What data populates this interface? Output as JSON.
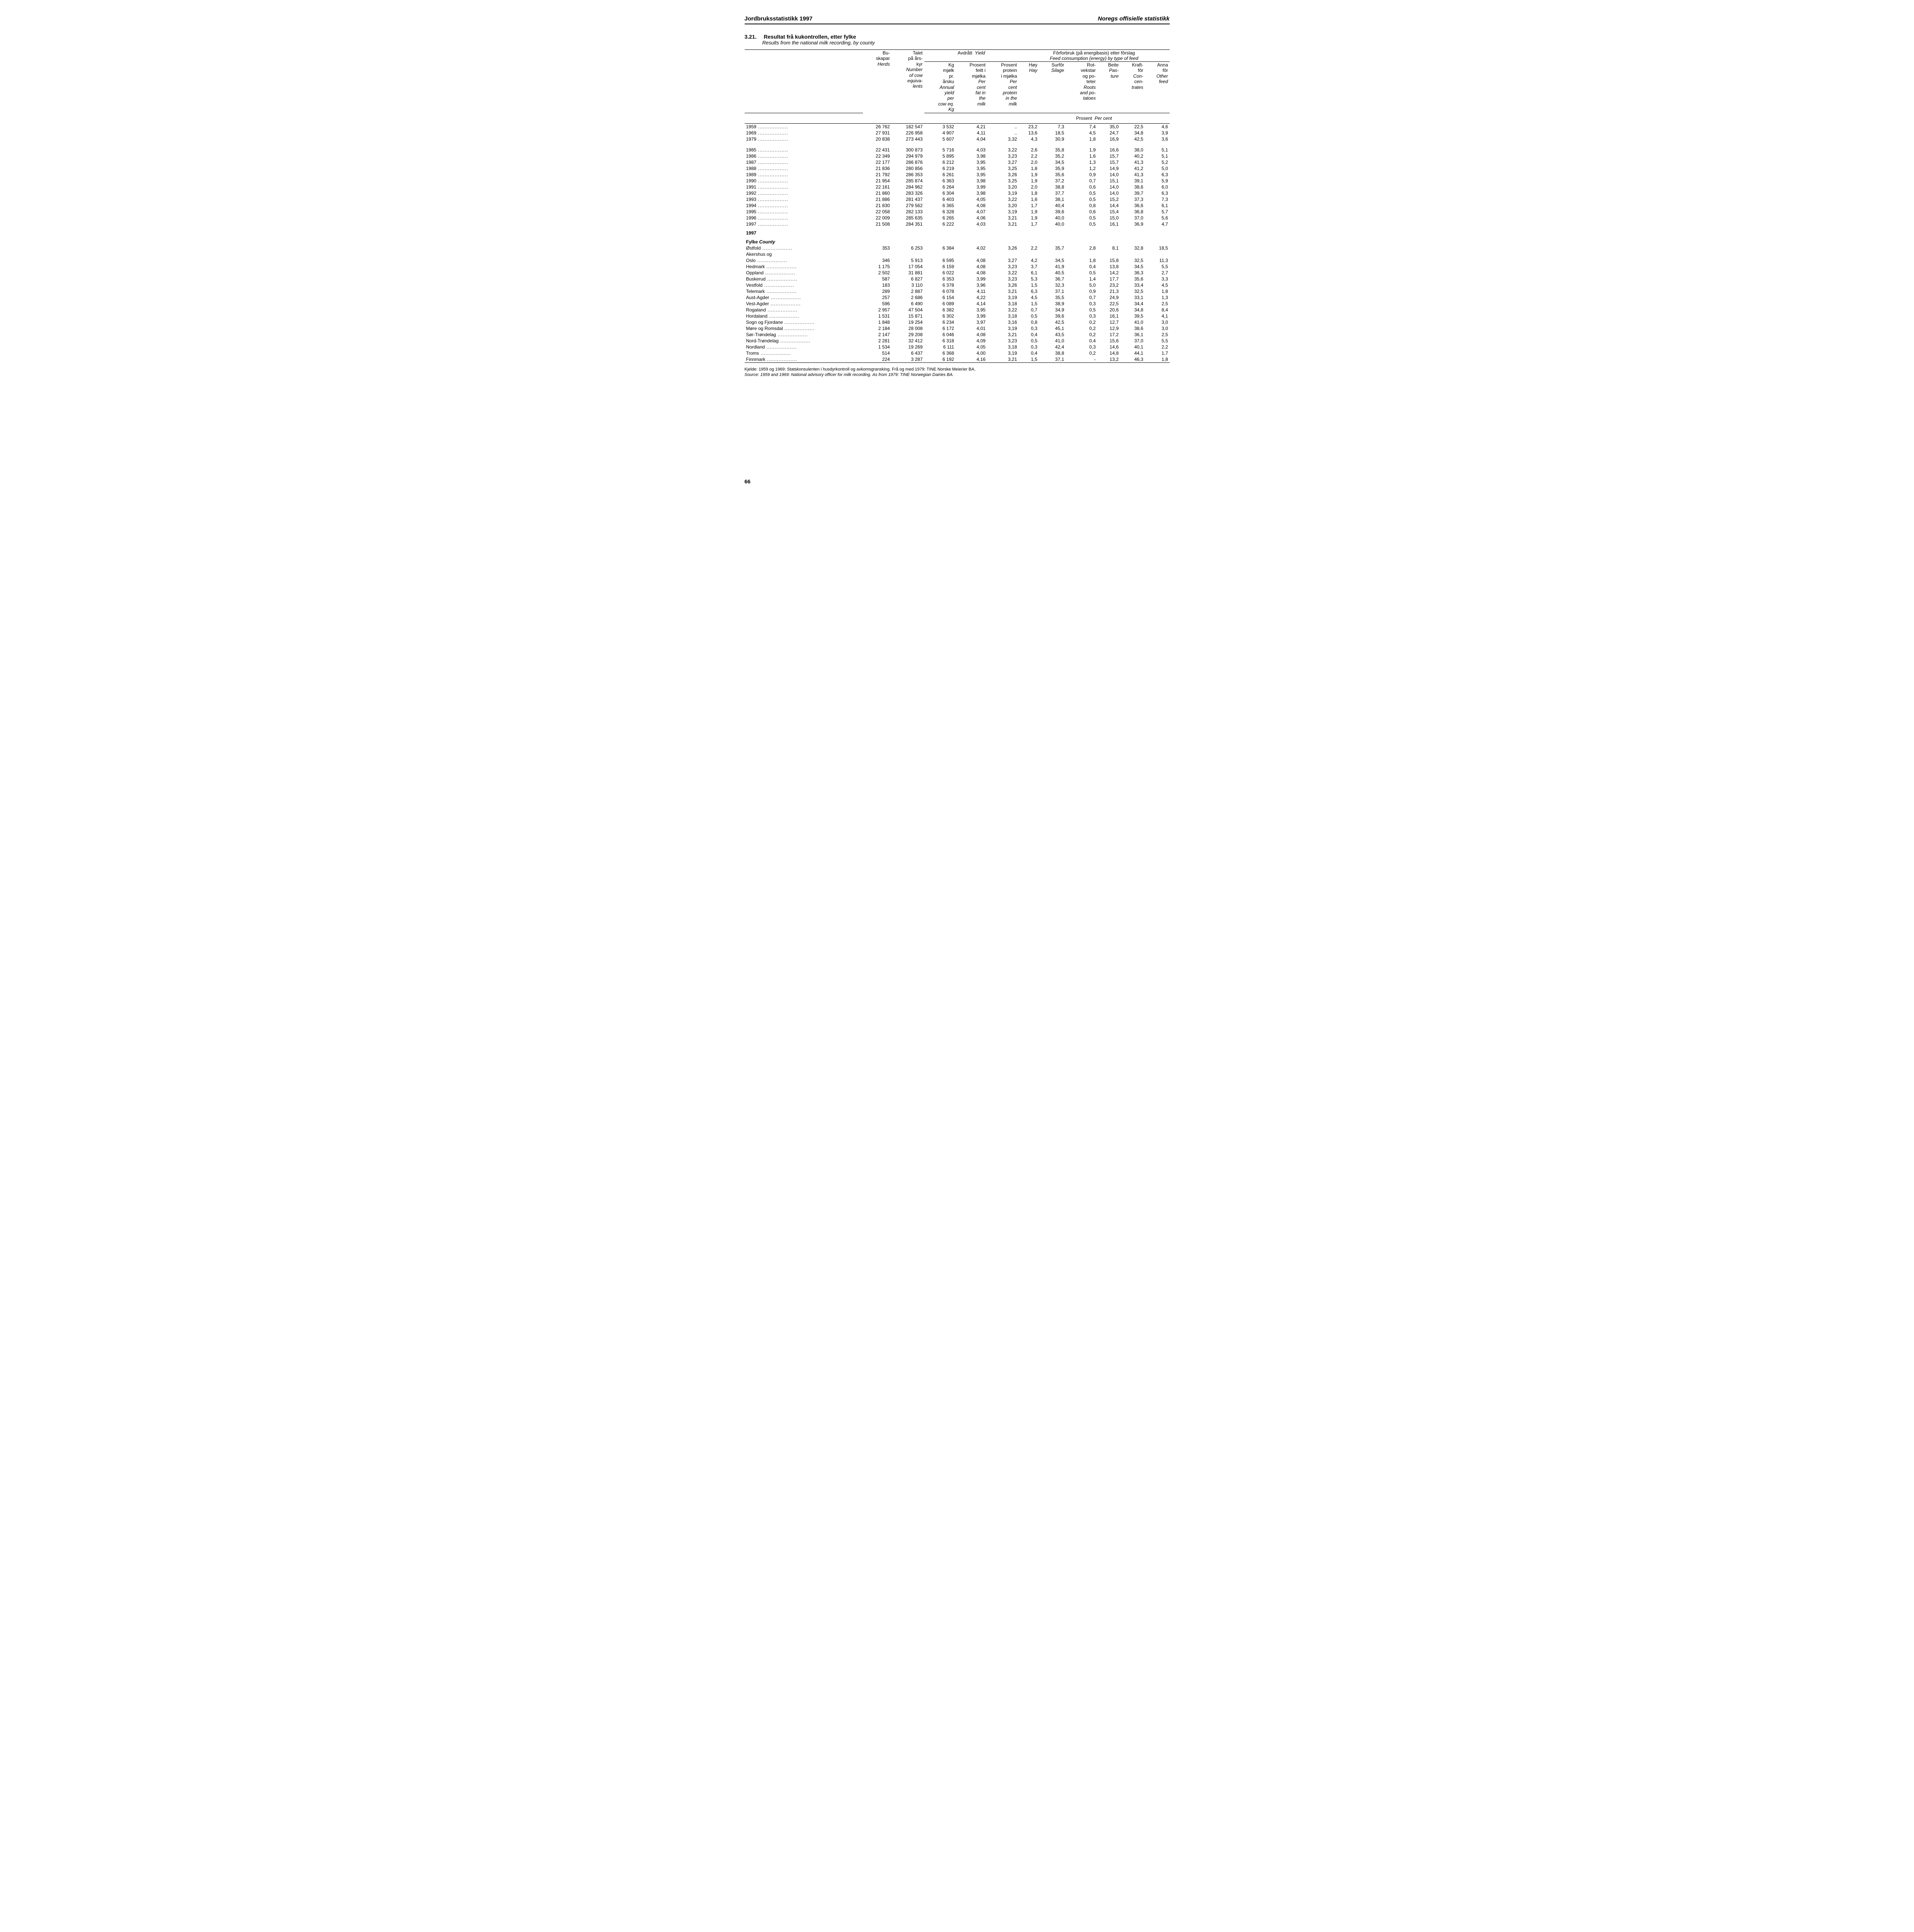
{
  "header": {
    "left": "Jordbruksstatistikk 1997",
    "right": "Noregs offisielle statistikk"
  },
  "title": {
    "num": "3.21.",
    "text": "Resultat frå kukontrollen, etter fylke",
    "sub": "Results from the national milk recording, by county"
  },
  "columns": {
    "group_avdratt": "Avdrått",
    "group_avdratt_en": "Yield",
    "group_for": "Fôrforbruk (på energibasis) etter fôrslag",
    "group_for_en": "Feed consumption (energy) by type of feed",
    "c1_no": "Bu-\nskapar",
    "c1_en": "Herds",
    "c2_no": "Talet\npå års-\nkyr",
    "c2_en": "Number\nof cow\nequiva-\nlents",
    "c3_no": "Kg\nmjølk\npr.\nårsku",
    "c3_en": "Annual\nyield\nper\ncow eq.\nKg",
    "c4_no": "Prosent\nfeitt i\nmjølka",
    "c4_en": "Per\ncent\nfat in\nthe\nmilk",
    "c5_no": "Prosent\nprotein\ni mjølka",
    "c5_en": "Per\ncent\nprotein\nin the\nmilk",
    "c6_no": "Høy",
    "c6_en": "Hay",
    "c7_no": "Surfôr",
    "c7_en": "Silage",
    "c8_no": "Rot-\nvekstar\nog po-\nteter",
    "c8_en": "Roots\nand po-\ntatoes",
    "c9_no": "Beite",
    "c9_en": "Pas-\nture",
    "c10_no": "Kraft-\nfôr",
    "c10_en": "Con-\ncen-\ntrates",
    "c11_no": "Anna\nfôr",
    "c11_en": "Other\nfeed",
    "percent": "Prosent",
    "percent_en": "Per cent"
  },
  "years": [
    {
      "label": "1959",
      "v": [
        "26 762",
        "182 547",
        "3 532",
        "4,21",
        "..",
        "23,2",
        "7,3",
        "7,4",
        "35,0",
        "22,5",
        "4,6"
      ]
    },
    {
      "label": "1969",
      "v": [
        "27 931",
        "226 958",
        "4 907",
        "4,11",
        "..",
        "13,6",
        "18,5",
        "4,5",
        "24,7",
        "34,8",
        "3,9"
      ]
    },
    {
      "label": "1979",
      "v": [
        "20 838",
        "273 443",
        "5 607",
        "4,04",
        "3,32",
        "4,3",
        "30,9",
        "1,8",
        "16,9",
        "42,5",
        "3,6"
      ]
    },
    {
      "label": "1985",
      "v": [
        "22 431",
        "300 873",
        "5 716",
        "4,03",
        "3,22",
        "2,6",
        "35,8",
        "1,9",
        "16,6",
        "38,0",
        "5,1"
      ]
    },
    {
      "label": "1986",
      "v": [
        "22 349",
        "294 979",
        "5 895",
        "3,98",
        "3,23",
        "2,2",
        "35,2",
        "1,6",
        "15,7",
        "40,2",
        "5,1"
      ]
    },
    {
      "label": "1987",
      "v": [
        "22 177",
        "286 876",
        "6 212",
        "3,95",
        "3,27",
        "2,0",
        "34,5",
        "1,3",
        "15,7",
        "41,3",
        "5,2"
      ]
    },
    {
      "label": "1988",
      "v": [
        "21 836",
        "280 856",
        "6 219",
        "3,95",
        "3,25",
        "1,8",
        "35,9",
        "1,2",
        "14,9",
        "41,2",
        "5,0"
      ]
    },
    {
      "label": "1989",
      "v": [
        "21 792",
        "286 353",
        "6 261",
        "3,95",
        "3,26",
        "1,9",
        "35,6",
        "0,9",
        "14,0",
        "41,3",
        "6,3"
      ]
    },
    {
      "label": "1990",
      "v": [
        "21 954",
        "285 874",
        "6 363",
        "3,98",
        "3,25",
        "1,9",
        "37,2",
        "0,7",
        "15,1",
        "39,1",
        "5,9"
      ]
    },
    {
      "label": "1991",
      "v": [
        "22 161",
        "284 962",
        "6 264",
        "3,99",
        "3,20",
        "2,0",
        "38,8",
        "0,6",
        "14,0",
        "38,6",
        "6,0"
      ]
    },
    {
      "label": "1992",
      "v": [
        "21 860",
        "283 326",
        "6 304",
        "3,98",
        "3,19",
        "1,8",
        "37,7",
        "0,5",
        "14,0",
        "39,7",
        "6,3"
      ]
    },
    {
      "label": "1993",
      "v": [
        "21 886",
        "281 437",
        "6 403",
        "4,05",
        "3,22",
        "1,6",
        "38,1",
        "0,5",
        "15,2",
        "37,3",
        "7,3"
      ]
    },
    {
      "label": "1994",
      "v": [
        "21 830",
        "279 562",
        "6 365",
        "4,08",
        "3,20",
        "1,7",
        "40,4",
        "0,8",
        "14,4",
        "36,6",
        "6,1"
      ]
    },
    {
      "label": "1995",
      "v": [
        "22 058",
        "282 133",
        "6 328",
        "4,07",
        "3,19",
        "1,9",
        "39,6",
        "0,6",
        "15,4",
        "36,8",
        "5,7"
      ]
    },
    {
      "label": "1996",
      "v": [
        "22 009",
        "285 635",
        "6 265",
        "4,06",
        "3,21",
        "1,9",
        "40,0",
        "0,5",
        "15,0",
        "37,0",
        "5,6"
      ]
    },
    {
      "label": "1997",
      "v": [
        "21 508",
        "284 351",
        "6 222",
        "4,03",
        "3,21",
        "1,7",
        "40,0",
        "0,5",
        "16,1",
        "36,9",
        "4,7"
      ]
    }
  ],
  "county_section": {
    "year": "1997",
    "label_no": "Fylke",
    "label_en": "County"
  },
  "counties": [
    {
      "label": "Østfold",
      "v": [
        "353",
        "6 253",
        "6 384",
        "4,02",
        "3,26",
        "2,2",
        "35,7",
        "2,8",
        "8,1",
        "32,8",
        "18,5"
      ]
    },
    {
      "label": "Akershus og",
      "noval": true
    },
    {
      "label": "Oslo",
      "v": [
        "346",
        "5 913",
        "6 595",
        "4,08",
        "3,27",
        "4,2",
        "34,5",
        "1,8",
        "15,8",
        "32,5",
        "11,3"
      ]
    },
    {
      "label": "Hedmark",
      "v": [
        "1 175",
        "17 054",
        "6 159",
        "4,08",
        "3,23",
        "3,7",
        "41,9",
        "0,4",
        "13,8",
        "34,5",
        "5,5"
      ]
    },
    {
      "label": "Oppland",
      "v": [
        "2 502",
        "31 881",
        "6 022",
        "4,08",
        "3,22",
        "6,1",
        "40,5",
        "0,5",
        "14,2",
        "36,3",
        "2,7"
      ]
    },
    {
      "label": "Buskerud",
      "v": [
        "587",
        "6 827",
        "6 353",
        "3,99",
        "3,23",
        "5,3",
        "36,7",
        "1,4",
        "17,7",
        "35,6",
        "3,3"
      ]
    },
    {
      "label": "Vestfold",
      "v": [
        "183",
        "3 110",
        "6 378",
        "3,96",
        "3,26",
        "1,5",
        "32,3",
        "5,0",
        "23,2",
        "33,4",
        "4,5"
      ]
    },
    {
      "label": "Telemark",
      "v": [
        "289",
        "2 887",
        "6 078",
        "4,11",
        "3,21",
        "6,3",
        "37,1",
        "0,9",
        "21,3",
        "32,5",
        "1,8"
      ]
    },
    {
      "label": "Aust-Agder",
      "v": [
        "257",
        "2 686",
        "6 154",
        "4,22",
        "3,19",
        "4,5",
        "35,5",
        "0,7",
        "24,9",
        "33,1",
        "1,3"
      ]
    },
    {
      "label": "Vest-Agder",
      "v": [
        "596",
        "6 490",
        "6 089",
        "4,14",
        "3,18",
        "1,5",
        "38,9",
        "0,3",
        "22,5",
        "34,4",
        "2,5"
      ]
    },
    {
      "label": "Rogaland",
      "v": [
        "2 957",
        "47 504",
        "6 382",
        "3,95",
        "3,22",
        "0,7",
        "34,9",
        "0,5",
        "20,6",
        "34,8",
        "8,4"
      ]
    },
    {
      "label": "Hordaland",
      "v": [
        "1 531",
        "15 871",
        "6 302",
        "3,99",
        "3,18",
        "0,5",
        "39,6",
        "0,3",
        "16,1",
        "39,5",
        "4,1"
      ]
    },
    {
      "label": "Sogn og Fjordane",
      "v": [
        "1 848",
        "19 254",
        "6 234",
        "3,97",
        "3,16",
        "0,8",
        "42,5",
        "0,2",
        "12,7",
        "41,0",
        "3,0"
      ]
    },
    {
      "label": "Møre og Romsdal",
      "v": [
        "2 184",
        "28 008",
        "6 172",
        "4,01",
        "3,19",
        "0,3",
        "45,1",
        "0,2",
        "12,9",
        "38,6",
        "3,0"
      ]
    },
    {
      "label": "Sør-Trøndelag",
      "v": [
        "2 147",
        "29 208",
        "6 046",
        "4,08",
        "3,21",
        "0,4",
        "43,5",
        "0,2",
        "17,2",
        "36,1",
        "2,5"
      ]
    },
    {
      "label": "Nord-Trøndelag",
      "v": [
        "2 281",
        "32 412",
        "6 318",
        "4,09",
        "3,23",
        "0,5",
        "41,0",
        "0,4",
        "15,6",
        "37,0",
        "5,5"
      ]
    },
    {
      "label": "Nordland",
      "v": [
        "1 534",
        "19 269",
        "6 111",
        "4,05",
        "3,18",
        "0,3",
        "42,4",
        "0,3",
        "14,6",
        "40,1",
        "2,2"
      ]
    },
    {
      "label": "Troms",
      "v": [
        "514",
        "6 437",
        "6 368",
        "4,00",
        "3,19",
        "0,4",
        "38,8",
        "0,2",
        "14,8",
        "44,1",
        "1,7"
      ]
    },
    {
      "label": "Finnmark",
      "v": [
        "224",
        "3 287",
        "6 192",
        "4,16",
        "3,21",
        "1,5",
        "37,1",
        "-",
        "13,2",
        "46,3",
        "1,8"
      ]
    }
  ],
  "footnote": {
    "no": "Kjelde: 1959 og 1969: Statskonsulenten i husdyrkontroll og avkomsgransking. Frå og med 1979: TINE Norske Meierier BA.",
    "en": "Source: 1959 and 1969: National advisory officer for milk recording. As from 1979: TINE Norwegian Dairies BA."
  },
  "pagenum": "66"
}
